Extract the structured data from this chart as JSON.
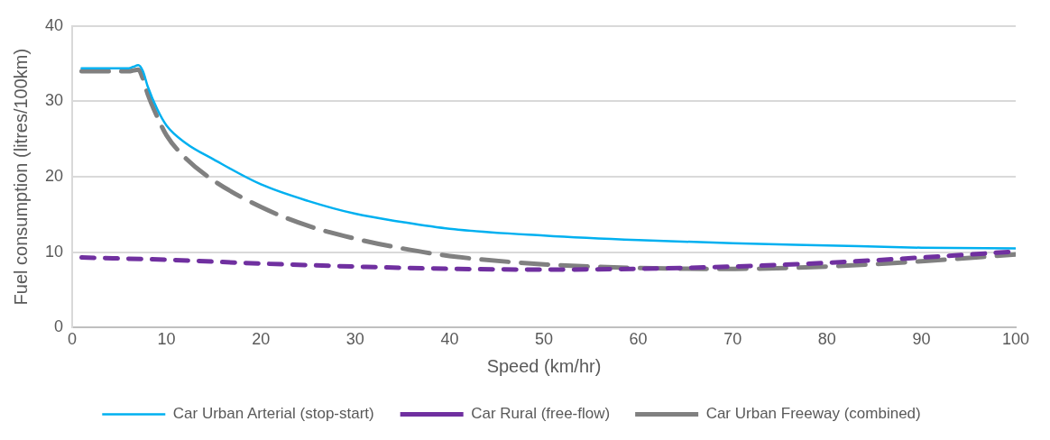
{
  "chart_data": {
    "type": "line",
    "xlabel": "Speed (km/hr)",
    "ylabel": "Fuel consumption (litres/100km)",
    "xlim": [
      0,
      100
    ],
    "xticks": [
      0,
      10,
      20,
      30,
      40,
      50,
      60,
      70,
      80,
      90,
      100
    ],
    "ylim": [
      0,
      40
    ],
    "yticks": [
      0,
      10,
      20,
      30,
      40
    ],
    "grid": "y",
    "legend": "bottom",
    "marker": "none",
    "series": [
      {
        "name": "Car Urban Arterial (stop-start)",
        "color": "#00b0f0",
        "line_style": "solid",
        "x": [
          1,
          3,
          5,
          6,
          6.5,
          7,
          7.5,
          8,
          9,
          10,
          12,
          15,
          20,
          25,
          30,
          35,
          40,
          50,
          60,
          70,
          80,
          90,
          100
        ],
        "values": [
          34.4,
          34.4,
          34.4,
          34.4,
          34.6,
          34.8,
          34,
          32,
          29,
          26.8,
          24.5,
          22.3,
          19,
          16.8,
          15.1,
          14,
          13.1,
          12.2,
          11.6,
          11.2,
          10.9,
          10.6,
          10.5
        ]
      },
      {
        "name": "Car Rural (free-flow)",
        "color": "#7030a0",
        "line_style": "dashed",
        "x": [
          1,
          10,
          20,
          30,
          40,
          50,
          60,
          70,
          80,
          90,
          100
        ],
        "values": [
          9.3,
          9,
          8.5,
          8.1,
          7.8,
          7.7,
          7.8,
          8.1,
          8.6,
          9.3,
          10.1
        ]
      },
      {
        "name": "Car Urban Freeway (combined)",
        "color": "#808080",
        "line_style": "dashed",
        "x": [
          1,
          3,
          5,
          6,
          6.5,
          7,
          7.5,
          8,
          9,
          10,
          12,
          15,
          20,
          25,
          30,
          35,
          40,
          50,
          60,
          70,
          80,
          90,
          100
        ],
        "values": [
          34,
          34,
          34,
          34,
          34.1,
          34.2,
          33,
          31,
          28,
          25.5,
          22.5,
          19.5,
          16,
          13.5,
          11.8,
          10.5,
          9.5,
          8.4,
          7.9,
          7.8,
          8.1,
          8.8,
          9.7
        ]
      }
    ]
  }
}
